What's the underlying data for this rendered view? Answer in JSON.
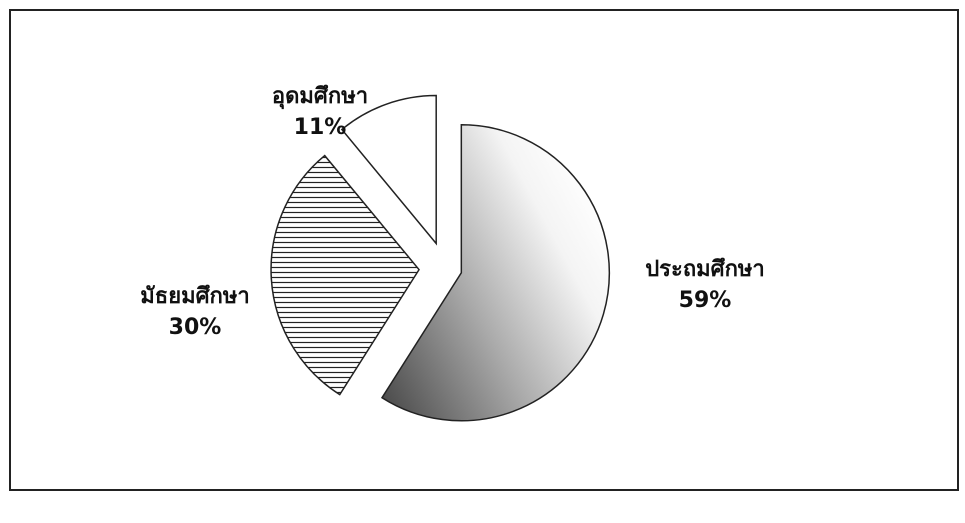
{
  "chart_data": {
    "type": "pie",
    "categories": [
      "ประถมศึกษา",
      "มัธยมศึกษา",
      "อุดมศึกษา"
    ],
    "values": [
      59,
      30,
      11
    ],
    "value_labels": [
      "59%",
      "30%",
      "11%"
    ]
  }
}
